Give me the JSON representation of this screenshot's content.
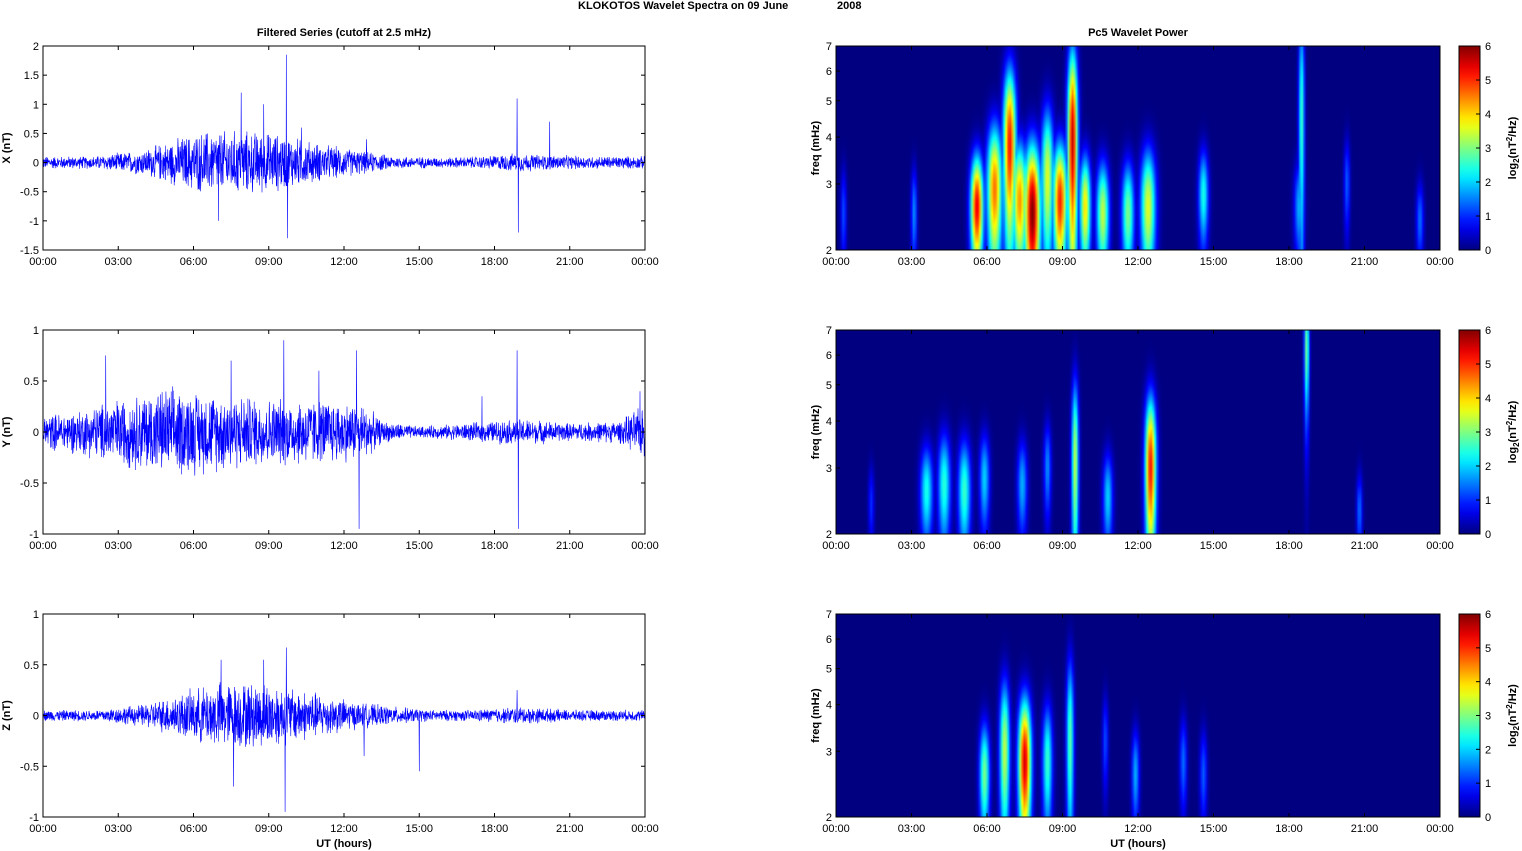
{
  "figure": {
    "title": "KLOKOTOS Wavelet Spectra on 09 June",
    "year": "2008"
  },
  "left_column_title": "Filtered Series (cutoff at 2.5 mHz)",
  "right_column_title": "Pc5 Wavelet Power",
  "x_axis": {
    "label": "UT (hours)",
    "ticks": [
      0,
      3,
      6,
      9,
      12,
      15,
      18,
      21,
      24
    ],
    "tick_labels": [
      "00:00",
      "03:00",
      "06:00",
      "09:00",
      "12:00",
      "15:00",
      "18:00",
      "21:00",
      "00:00"
    ]
  },
  "colormap": "jet",
  "colorbar": {
    "ticks": [
      0,
      1,
      2,
      3,
      4,
      5,
      6
    ],
    "range": [
      0,
      6
    ]
  },
  "chart_data": [
    {
      "type": "line",
      "panel": "x-series",
      "ylabel": "X (nT)",
      "ylim": [
        -1.5,
        2
      ],
      "yticks": [
        -1.5,
        -1,
        -0.5,
        0,
        0.5,
        1,
        1.5,
        2
      ],
      "xlim": [
        0,
        24
      ],
      "color": "#0000ff",
      "envelope": [
        [
          0,
          0.1
        ],
        [
          2,
          0.1
        ],
        [
          4,
          0.2
        ],
        [
          5.5,
          0.4
        ],
        [
          6.5,
          0.5
        ],
        [
          8,
          0.5
        ],
        [
          9.5,
          0.45
        ],
        [
          11,
          0.3
        ],
        [
          12.5,
          0.2
        ],
        [
          14,
          0.1
        ],
        [
          16,
          0.08
        ],
        [
          17.5,
          0.1
        ],
        [
          19,
          0.15
        ],
        [
          20,
          0.12
        ],
        [
          22,
          0.1
        ],
        [
          24,
          0.1
        ]
      ],
      "spikes": [
        [
          7.9,
          1.2
        ],
        [
          9.7,
          1.85
        ],
        [
          9.75,
          -1.3
        ],
        [
          18.9,
          1.1
        ],
        [
          18.95,
          -1.2
        ],
        [
          7.0,
          -1.0
        ],
        [
          8.8,
          1.0
        ],
        [
          20.2,
          0.7
        ],
        [
          10.3,
          0.6
        ],
        [
          12.9,
          0.4
        ]
      ]
    },
    {
      "type": "line",
      "panel": "y-series",
      "ylabel": "Y (nT)",
      "ylim": [
        -1,
        1
      ],
      "yticks": [
        -1,
        -0.5,
        0,
        0.5,
        1
      ],
      "xlim": [
        0,
        24
      ],
      "color": "#0000ff",
      "envelope": [
        [
          0,
          0.15
        ],
        [
          1.5,
          0.2
        ],
        [
          3,
          0.3
        ],
        [
          5,
          0.4
        ],
        [
          7,
          0.35
        ],
        [
          9,
          0.3
        ],
        [
          11,
          0.3
        ],
        [
          12.8,
          0.25
        ],
        [
          13.5,
          0.1
        ],
        [
          15,
          0.05
        ],
        [
          17,
          0.08
        ],
        [
          19,
          0.12
        ],
        [
          21,
          0.08
        ],
        [
          23,
          0.1
        ],
        [
          24,
          0.25
        ]
      ],
      "spikes": [
        [
          9.6,
          0.9
        ],
        [
          12.6,
          -0.95
        ],
        [
          12.5,
          0.8
        ],
        [
          18.9,
          0.8
        ],
        [
          18.95,
          -0.95
        ],
        [
          2.5,
          0.75
        ],
        [
          7.5,
          0.7
        ],
        [
          11.0,
          0.6
        ],
        [
          17.5,
          0.35
        ],
        [
          23.8,
          0.4
        ]
      ]
    },
    {
      "type": "line",
      "panel": "z-series",
      "ylabel": "Z (nT)",
      "ylim": [
        -1,
        1
      ],
      "yticks": [
        -1,
        -0.5,
        0,
        0.5,
        1
      ],
      "xlim": [
        0,
        24
      ],
      "color": "#0000ff",
      "envelope": [
        [
          0,
          0.05
        ],
        [
          2,
          0.05
        ],
        [
          4,
          0.1
        ],
        [
          5.5,
          0.2
        ],
        [
          7,
          0.3
        ],
        [
          9,
          0.3
        ],
        [
          11,
          0.2
        ],
        [
          12.5,
          0.12
        ],
        [
          14,
          0.08
        ],
        [
          15.5,
          0.05
        ],
        [
          17,
          0.05
        ],
        [
          19,
          0.08
        ],
        [
          21,
          0.05
        ],
        [
          24,
          0.05
        ]
      ],
      "spikes": [
        [
          7.1,
          0.55
        ],
        [
          8.8,
          0.55
        ],
        [
          9.7,
          0.67
        ],
        [
          9.65,
          -0.95
        ],
        [
          7.6,
          -0.7
        ],
        [
          15.0,
          -0.55
        ],
        [
          18.9,
          0.25
        ],
        [
          12.8,
          -0.4
        ]
      ]
    },
    {
      "type": "heatmap",
      "panel": "x-wavelet",
      "ylabel": "freq (mHz)",
      "yscale": "log",
      "ylim": [
        2,
        7
      ],
      "yticks": [
        2,
        3,
        4,
        5,
        6,
        7
      ],
      "xlim": [
        0,
        24
      ],
      "colorbar_label": "log2(nT^2/Hz)",
      "blobs": [
        {
          "t": 5.6,
          "f": 2.6,
          "w": 0.25,
          "h": 0.35,
          "v": 5.4
        },
        {
          "t": 6.3,
          "f": 2.9,
          "w": 0.3,
          "h": 0.45,
          "v": 4.6
        },
        {
          "t": 6.9,
          "f": 3.8,
          "w": 0.25,
          "h": 0.55,
          "v": 5.2
        },
        {
          "t": 7.3,
          "f": 2.7,
          "w": 0.3,
          "h": 0.4,
          "v": 4.4
        },
        {
          "t": 7.8,
          "f": 2.5,
          "w": 0.32,
          "h": 0.5,
          "v": 6.0
        },
        {
          "t": 8.4,
          "f": 3.1,
          "w": 0.25,
          "h": 0.5,
          "v": 3.6
        },
        {
          "t": 8.9,
          "f": 2.7,
          "w": 0.28,
          "h": 0.4,
          "v": 5.1
        },
        {
          "t": 9.4,
          "f": 3.9,
          "w": 0.2,
          "h": 0.7,
          "v": 5.6
        },
        {
          "t": 9.9,
          "f": 2.6,
          "w": 0.22,
          "h": 0.35,
          "v": 3.9
        },
        {
          "t": 10.6,
          "f": 2.5,
          "w": 0.25,
          "h": 0.35,
          "v": 3.4
        },
        {
          "t": 11.6,
          "f": 2.5,
          "w": 0.25,
          "h": 0.35,
          "v": 3.0
        },
        {
          "t": 12.4,
          "f": 2.6,
          "w": 0.3,
          "h": 0.4,
          "v": 3.6
        },
        {
          "t": 14.6,
          "f": 2.8,
          "w": 0.2,
          "h": 0.3,
          "v": 2.4
        },
        {
          "t": 18.5,
          "f": 4.5,
          "w": 0.12,
          "h": 0.8,
          "v": 2.6
        },
        {
          "t": 18.4,
          "f": 2.6,
          "w": 0.2,
          "h": 0.3,
          "v": 1.8
        },
        {
          "t": 3.1,
          "f": 2.5,
          "w": 0.12,
          "h": 0.3,
          "v": 1.6
        },
        {
          "t": 0.3,
          "f": 2.5,
          "w": 0.12,
          "h": 0.3,
          "v": 1.2
        },
        {
          "t": 23.2,
          "f": 2.4,
          "w": 0.15,
          "h": 0.25,
          "v": 1.4
        },
        {
          "t": 20.3,
          "f": 3.0,
          "w": 0.12,
          "h": 0.3,
          "v": 1.3
        }
      ]
    },
    {
      "type": "heatmap",
      "panel": "y-wavelet",
      "ylabel": "freq (mHz)",
      "yscale": "log",
      "ylim": [
        2,
        7
      ],
      "yticks": [
        2,
        3,
        4,
        5,
        6,
        7
      ],
      "xlim": [
        0,
        24
      ],
      "colorbar_label": "log2(nT^2/Hz)",
      "blobs": [
        {
          "t": 3.6,
          "f": 2.6,
          "w": 0.25,
          "h": 0.3,
          "v": 2.4
        },
        {
          "t": 4.3,
          "f": 2.7,
          "w": 0.25,
          "h": 0.35,
          "v": 2.5
        },
        {
          "t": 5.1,
          "f": 2.6,
          "w": 0.25,
          "h": 0.35,
          "v": 2.6
        },
        {
          "t": 5.9,
          "f": 2.8,
          "w": 0.2,
          "h": 0.3,
          "v": 2.0
        },
        {
          "t": 7.4,
          "f": 2.7,
          "w": 0.2,
          "h": 0.3,
          "v": 1.8
        },
        {
          "t": 8.4,
          "f": 3.0,
          "w": 0.15,
          "h": 0.3,
          "v": 1.6
        },
        {
          "t": 9.5,
          "f": 3.1,
          "w": 0.14,
          "h": 0.6,
          "v": 3.4
        },
        {
          "t": 10.8,
          "f": 2.5,
          "w": 0.2,
          "h": 0.3,
          "v": 2.0
        },
        {
          "t": 12.5,
          "f": 3.0,
          "w": 0.22,
          "h": 0.5,
          "v": 5.2
        },
        {
          "t": 18.7,
          "f": 6.2,
          "w": 0.1,
          "h": 0.4,
          "v": 3.0
        },
        {
          "t": 20.8,
          "f": 2.3,
          "w": 0.12,
          "h": 0.25,
          "v": 1.4
        },
        {
          "t": 1.4,
          "f": 2.4,
          "w": 0.12,
          "h": 0.25,
          "v": 1.0
        }
      ]
    },
    {
      "type": "heatmap",
      "panel": "z-wavelet",
      "ylabel": "freq (mHz)",
      "yscale": "log",
      "ylim": [
        2,
        7
      ],
      "yticks": [
        2,
        3,
        4,
        5,
        6,
        7
      ],
      "xlim": [
        0,
        24
      ],
      "colorbar_label": "log2(nT^2/Hz)",
      "blobs": [
        {
          "t": 5.9,
          "f": 2.6,
          "w": 0.2,
          "h": 0.35,
          "v": 3.0
        },
        {
          "t": 6.7,
          "f": 3.0,
          "w": 0.2,
          "h": 0.5,
          "v": 3.4
        },
        {
          "t": 7.5,
          "f": 2.8,
          "w": 0.25,
          "h": 0.45,
          "v": 5.5
        },
        {
          "t": 8.4,
          "f": 2.8,
          "w": 0.2,
          "h": 0.4,
          "v": 2.6
        },
        {
          "t": 9.3,
          "f": 3.2,
          "w": 0.15,
          "h": 0.6,
          "v": 2.8
        },
        {
          "t": 11.9,
          "f": 2.6,
          "w": 0.15,
          "h": 0.3,
          "v": 1.8
        },
        {
          "t": 13.8,
          "f": 2.8,
          "w": 0.15,
          "h": 0.3,
          "v": 1.4
        },
        {
          "t": 14.6,
          "f": 2.6,
          "w": 0.15,
          "h": 0.3,
          "v": 1.3
        },
        {
          "t": 10.7,
          "f": 3.2,
          "w": 0.12,
          "h": 0.3,
          "v": 1.2
        }
      ]
    }
  ]
}
